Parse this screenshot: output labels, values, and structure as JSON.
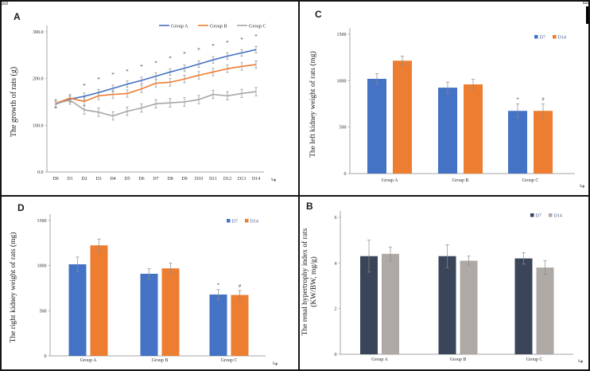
{
  "colors": {
    "group_a_blue": "#4472C4",
    "group_b_orange": "#ED7D31",
    "group_c_gray": "#A5A5A5",
    "d7_navy": "#3A4559",
    "d14_light_gray": "#AEA9A4",
    "axis_gray": "#A6A6A6",
    "error_bar_gray": "#8C8C8C"
  },
  "panels": [
    {
      "id": "A",
      "label": "A",
      "return_mark": "↵"
    },
    {
      "id": "C",
      "label": "C",
      "return_mark": "↵"
    },
    {
      "id": "D",
      "label": "D",
      "return_mark": "↵"
    },
    {
      "id": "B",
      "label": "B",
      "return_mark": "↵"
    }
  ],
  "chart_data": [
    {
      "panel": "A",
      "type": "line",
      "ylabel": "The growth of rats (g)",
      "ylabel_lines": [
        "The growth of rats (g)"
      ],
      "ylim": [
        0,
        300
      ],
      "yticks": [
        "0.0",
        "100.0",
        "200.0",
        "300.0"
      ],
      "x_categories": [
        "D0",
        "D1",
        "D2",
        "D3",
        "D4",
        "D5",
        "D6",
        "D7",
        "D8",
        "D9",
        "D10",
        "D11",
        "D12",
        "D13",
        "D14"
      ],
      "legend_position": "top-right",
      "grid": false,
      "series": [
        {
          "name": "Group A",
          "color": "#4472C4",
          "values": [
            145,
            156,
            162,
            170,
            179,
            188,
            196,
            205,
            214,
            222,
            231,
            240,
            248,
            255,
            262
          ],
          "err": 7
        },
        {
          "name": "Group B",
          "color": "#ED7D31",
          "values": [
            147,
            158,
            151,
            163,
            166,
            168,
            178,
            190,
            192,
            199,
            207,
            214,
            221,
            226,
            230
          ],
          "err": 8
        },
        {
          "name": "Group C",
          "color": "#A5A5A5",
          "values": [
            146,
            154,
            133,
            128,
            120,
            130,
            137,
            146,
            148,
            150,
            155,
            166,
            163,
            168,
            172
          ],
          "err": 9
        }
      ],
      "annotations": {
        "symbol": "*",
        "x_categories": [
          "D2",
          "D3",
          "D4",
          "D5",
          "D6",
          "D7",
          "D8",
          "D9",
          "D10",
          "D11",
          "D12",
          "D13",
          "D14"
        ],
        "values": [
          184,
          198,
          208,
          215,
          225,
          233,
          243,
          252,
          261,
          269,
          276,
          283,
          290
        ]
      }
    },
    {
      "panel": "C",
      "type": "bar",
      "ylabel": "The left kidney weight of rats (mg)",
      "ylabel_lines": [
        "The left kidney weight of rats (mg)"
      ],
      "ylim": [
        0,
        1500
      ],
      "yticks": [
        "0",
        "500",
        "1000",
        "1500"
      ],
      "categories": [
        "Group A",
        "Group B",
        "Group C"
      ],
      "legend_position": "top-right",
      "grid": false,
      "series": [
        {
          "name": "D7",
          "color": "#4472C4",
          "values": [
            1020,
            925,
            675
          ],
          "err": [
            55,
            60,
            75
          ]
        },
        {
          "name": "D14",
          "color": "#ED7D31",
          "values": [
            1215,
            960,
            675
          ],
          "err": [
            50,
            55,
            75
          ]
        }
      ],
      "sig_marks": [
        {
          "category": "Group C",
          "series": "D7",
          "symbol": "*"
        },
        {
          "category": "Group C",
          "series": "D14",
          "symbol": "#"
        }
      ]
    },
    {
      "panel": "D",
      "type": "bar",
      "ylabel": "The right kidney weight of rats (mg)",
      "ylabel_lines": [
        "The right kidney weight of rats (mg)"
      ],
      "ylim": [
        0,
        1500
      ],
      "yticks": [
        "0",
        "500",
        "1000",
        "1500"
      ],
      "categories": [
        "Group A",
        "Group B",
        "Group C"
      ],
      "legend_position": "top-right",
      "grid": false,
      "series": [
        {
          "name": "D7",
          "color": "#4472C4",
          "values": [
            1015,
            910,
            680
          ],
          "err": [
            80,
            55,
            55
          ]
        },
        {
          "name": "D14",
          "color": "#ED7D31",
          "values": [
            1225,
            970,
            675
          ],
          "err": [
            70,
            60,
            50
          ]
        }
      ],
      "sig_marks": [
        {
          "category": "Group C",
          "series": "D7",
          "symbol": "*"
        },
        {
          "category": "Group C",
          "series": "D14",
          "symbol": "#"
        }
      ]
    },
    {
      "panel": "B",
      "type": "bar",
      "ylabel": "The renal hypertrophy index of rats (KW/BW, mg/g)",
      "ylabel_lines": [
        "The renal hypertrophy index of rats",
        "(KW/BW, mg/g)"
      ],
      "ylim": [
        0,
        6
      ],
      "yticks": [
        "0",
        "2",
        "4",
        "6"
      ],
      "categories": [
        "Group A",
        "Group B",
        "Group C"
      ],
      "legend_position": "top-right",
      "grid": false,
      "series": [
        {
          "name": "D7",
          "color": "#3A4559",
          "values": [
            4.3,
            4.3,
            4.2
          ],
          "err": [
            0.7,
            0.5,
            0.25
          ]
        },
        {
          "name": "D14",
          "color": "#AEA9A4",
          "values": [
            4.4,
            4.1,
            3.8
          ],
          "err": [
            0.3,
            0.2,
            0.3
          ]
        }
      ],
      "sig_marks": []
    }
  ]
}
